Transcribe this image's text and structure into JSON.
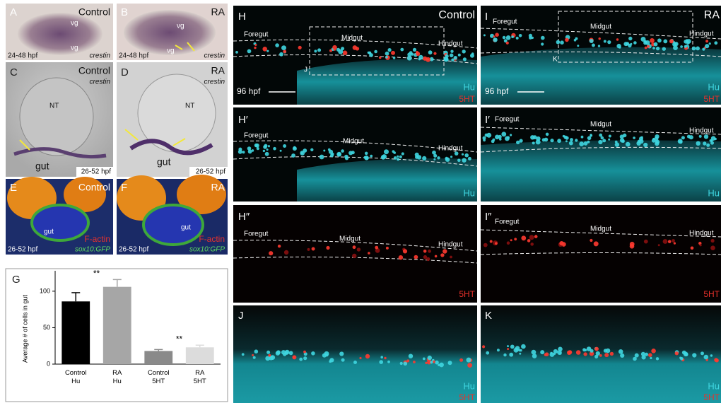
{
  "panels": [
    {
      "label": "A",
      "texts": [
        "Control",
        "vg",
        "vg",
        "24-48 hpf",
        "crestin"
      ]
    },
    {
      "label": "B",
      "texts": [
        "RA",
        "vg",
        "vg",
        "24-48 hpf",
        "crestin"
      ]
    },
    {
      "label": "C",
      "texts": [
        "Control",
        "crestin",
        "NT",
        "gut",
        "26-52 hpf"
      ]
    },
    {
      "label": "D",
      "texts": [
        "RA",
        "crestin",
        "NT",
        "gut",
        "26-52 hpf"
      ]
    },
    {
      "label": "E",
      "texts": [
        "Control",
        "gut",
        "F-actin",
        "sox10:GFP",
        "26-52 hpf"
      ]
    },
    {
      "label": "F",
      "texts": [
        "RA",
        "gut",
        "F-actin",
        "sox10:GFP",
        "26-52 hpf"
      ]
    },
    {
      "label": "H",
      "texts": [
        "Control",
        "Foregut",
        "Midgut",
        "Hindgut",
        "J",
        "Hu",
        "5HT",
        "96 hpf"
      ]
    },
    {
      "label": "I",
      "texts": [
        "RA",
        "Foregut",
        "Midgut",
        "Hindgut",
        "K",
        "Hu",
        "5HT",
        "96 hpf"
      ]
    },
    {
      "label": "H′",
      "texts": [
        "Foregut",
        "Midgut",
        "Hindgut",
        "Hu"
      ]
    },
    {
      "label": "I′",
      "texts": [
        "Foregut",
        "Midgut",
        "Hindgut",
        "Hu"
      ]
    },
    {
      "label": "H″",
      "texts": [
        "Foregut",
        "Midgut",
        "Hindgut",
        "5HT"
      ]
    },
    {
      "label": "I″",
      "texts": [
        "Foregut",
        "Midgut",
        "Hindgut",
        "5HT"
      ]
    },
    {
      "label": "J",
      "texts": [
        "Hu",
        "5HT"
      ]
    },
    {
      "label": "K",
      "texts": [
        "Hu",
        "5HT"
      ]
    },
    {
      "label": "G"
    }
  ],
  "chart_data": {
    "type": "bar",
    "y_label": "Average # of cells in gut",
    "categories": [
      "Control\nHu",
      "RA\nHu",
      "Control\n5HT",
      "RA\n5HT"
    ],
    "values": [
      86,
      106,
      18,
      23
    ],
    "errors": [
      12,
      10,
      2,
      3
    ],
    "colors": [
      "#000000",
      "#a6a6a6",
      "#8a8a8a",
      "#dcdcdc"
    ],
    "annotations": [
      "**",
      "**"
    ],
    "ylim": [
      0,
      128
    ],
    "yticks": [
      0,
      50,
      100
    ]
  }
}
